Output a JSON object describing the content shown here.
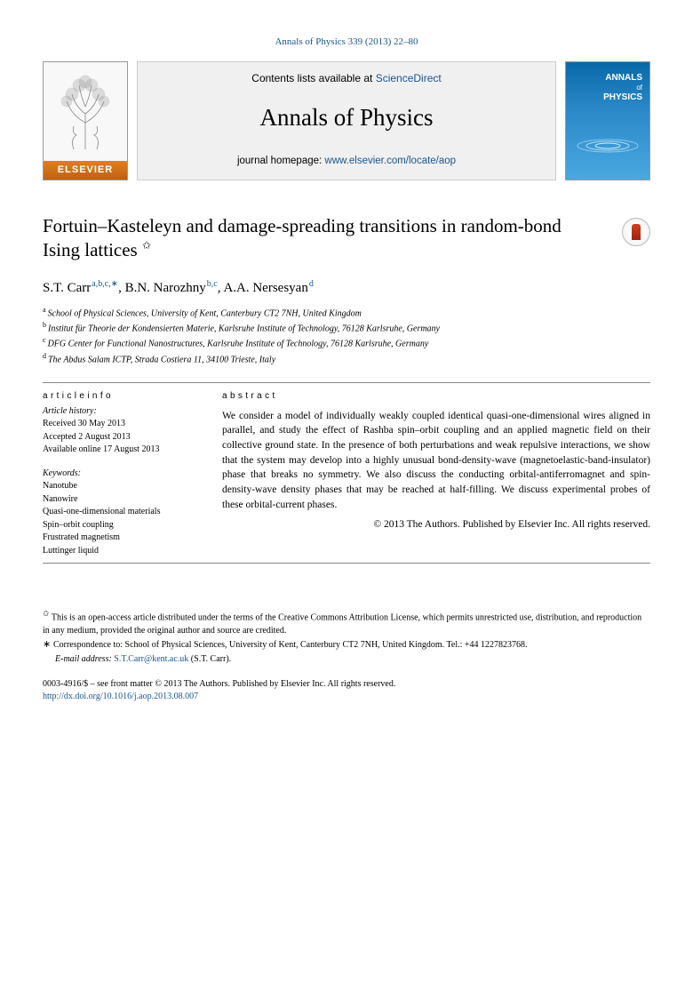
{
  "citation": {
    "text": "Annals of Physics 339 (2013) 22–80",
    "url": "#"
  },
  "header": {
    "contents_prefix": "Contents lists available at ",
    "sd_label": "ScienceDirect",
    "journal_title": "Annals of Physics",
    "homepage_prefix": "journal homepage: ",
    "homepage_url_label": "www.elsevier.com/locate/aop",
    "elsevier_label": "ELSEVIER",
    "cover_line1": "ANNALS",
    "cover_line2": "of",
    "cover_line3": "PHYSICS"
  },
  "title": "Fortuin–Kasteleyn and damage-spreading transitions in random-bond Ising lattices",
  "authors": [
    {
      "name": "S.T. Carr",
      "sups": "a,b,c,∗"
    },
    {
      "name": "B.N. Narozhny",
      "sups": "b,c"
    },
    {
      "name": "A.A. Nersesyan",
      "sups": "d"
    }
  ],
  "author_joiner": ", ",
  "affiliations": [
    {
      "label": "a",
      "text": "School of Physical Sciences, University of Kent, Canterbury CT2 7NH, United Kingdom"
    },
    {
      "label": "b",
      "text": "Institut für Theorie der Kondensierten Materie, Karlsruhe Institute of Technology, 76128 Karlsruhe, Germany"
    },
    {
      "label": "c",
      "text": "DFG Center for Functional Nanostructures, Karlsruhe Institute of Technology, 76128 Karlsruhe, Germany"
    },
    {
      "label": "d",
      "text": "The Abdus Salam ICTP, Strada Costiera 11, 34100 Trieste, Italy"
    }
  ],
  "article_info": {
    "heading1": "a r t i c l e   i n f o",
    "history": [
      "Article history:",
      "Received 30 May 2013",
      "Accepted 2 August 2013",
      "Available online 17 August 2013"
    ],
    "kw_heading": "Keywords:",
    "keywords": [
      "Nanotube",
      "Nanowire",
      "Quasi-one-dimensional materials",
      "Spin–orbit coupling",
      "Frustrated magnetism",
      "Luttinger liquid"
    ]
  },
  "abstract": {
    "heading": "a b s t r a c t",
    "body": "We consider a model of individually weakly coupled identical quasi-one-dimensional wires aligned in parallel, and study the effect of Rashba spin–orbit coupling and an applied magnetic field on their collective ground state. In the presence of both perturbations and weak repulsive interactions, we show that the system may develop into a highly unusual bond-density-wave (magnetoelastic-band-insulator) phase that breaks no symmetry. We also discuss the conducting orbital-antiferromagnet and spin-density-wave density phases that may be reached at half-filling. We discuss experimental probes of these orbital-current phases.",
    "license": "© 2013 The Authors. Published by Elsevier Inc. All rights reserved."
  },
  "footnotes": {
    "oa_note": "This is an open-access article distributed under the terms of the Creative Commons Attribution License, which permits unrestricted use, distribution, and reproduction in any medium, provided the original author and source are credited.",
    "corr_prefix": "Correspondence to: School of Physical Sciences, University of Kent, Canterbury CT2 7NH, United Kingdom. Tel.: +44 1227823768.",
    "email_label": "E-mail address: ",
    "email": "S.T.Carr@kent.ac.uk",
    "email_suffix": " (S.T. Carr)."
  },
  "copyright": {
    "issn_line": "0003-4916/$ – see front matter © 2013 The Authors. Published by Elsevier Inc. All rights reserved.",
    "doi": "http://dx.doi.org/10.1016/j.aop.2013.08.007"
  },
  "colors": {
    "link": "#1a5490",
    "elsevier_orange": "#d06818",
    "cover_blue": "#1676b6"
  }
}
